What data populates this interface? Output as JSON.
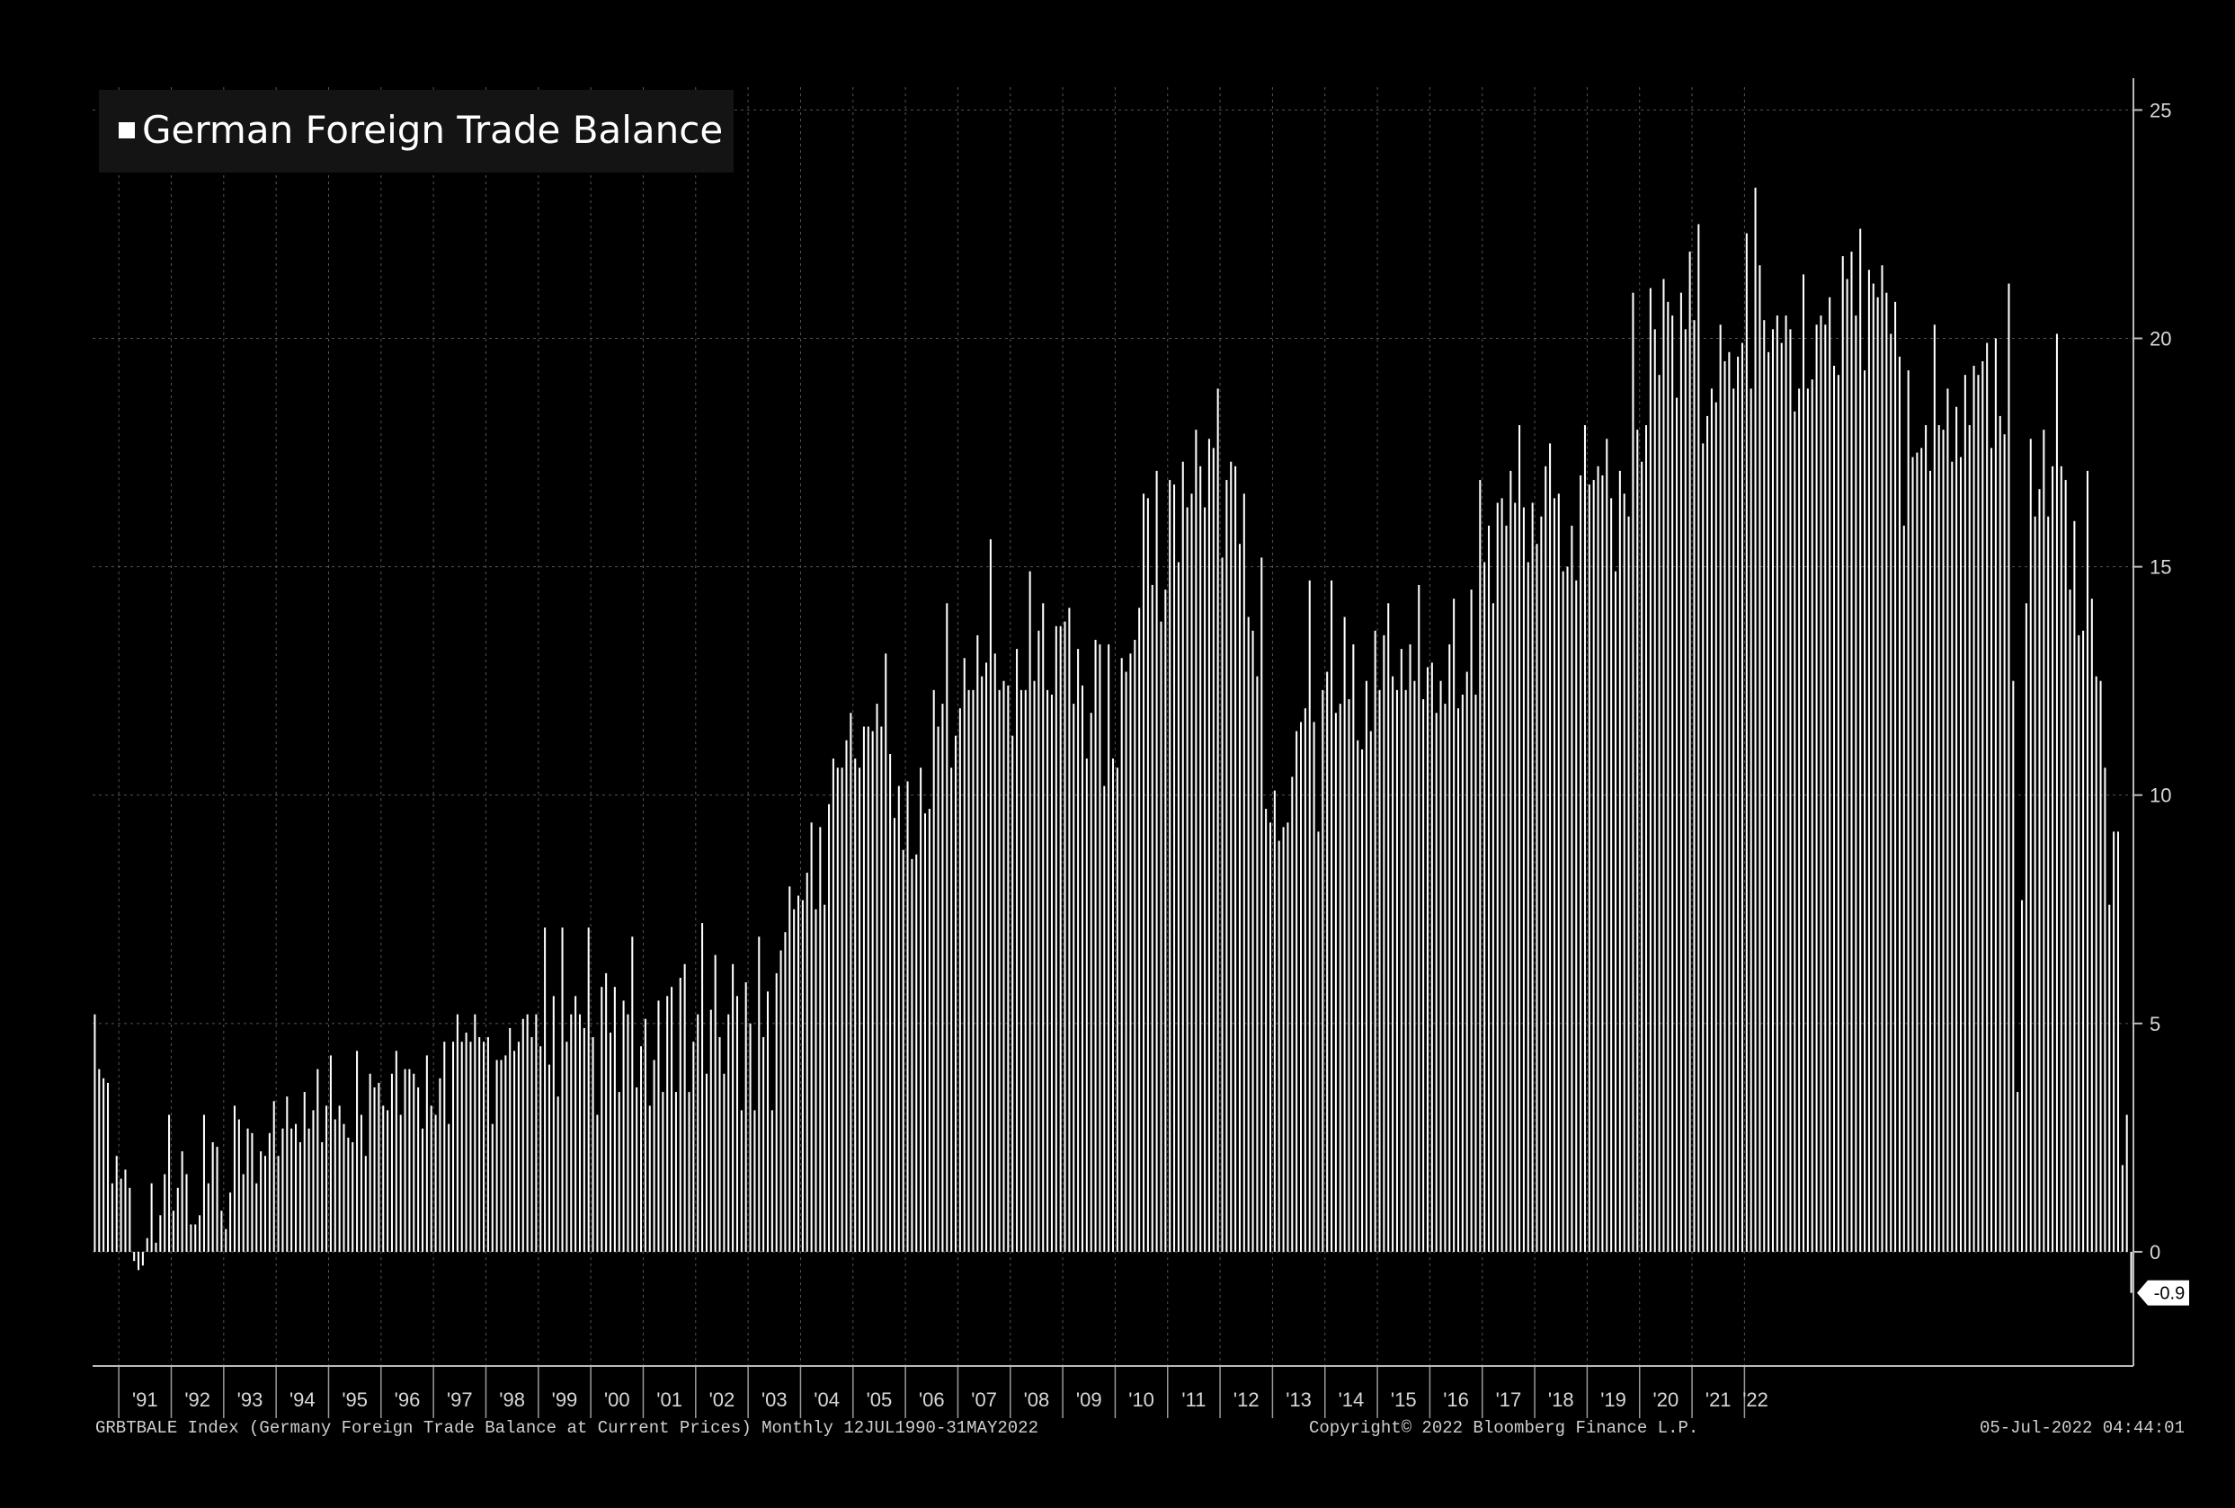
{
  "chart_data": {
    "type": "bar",
    "title": "",
    "legend": {
      "position": "top-left",
      "entries": [
        "German Foreign Trade Balance"
      ]
    },
    "colors": {
      "bars": "#ffffff",
      "background": "#000000",
      "grid": "#555555"
    },
    "grid": true,
    "x_range": [
      "1990-07",
      "2022-05"
    ],
    "ylim": [
      -2.5,
      25.5
    ],
    "y_ticks": [
      0,
      5,
      10,
      15,
      20,
      25
    ],
    "x_tick_labels": [
      "'91",
      "'92",
      "'93",
      "'94",
      "'95",
      "'96",
      "'97",
      "'98",
      "'99",
      "'00",
      "'01",
      "'02",
      "'03",
      "'04",
      "'05",
      "'06",
      "'07",
      "'08",
      "'09",
      "'10",
      "'11",
      "'12",
      "'13",
      "'14",
      "'15",
      "'16",
      "'17",
      "'18",
      "'19",
      "'20",
      "'21",
      "'22"
    ],
    "last_value_label": "-0.9",
    "series": [
      {
        "name": "German Foreign Trade Balance",
        "start_month": "1990-07",
        "frequency": "monthly",
        "values": [
          5.2,
          4.0,
          3.8,
          3.7,
          1.5,
          2.1,
          1.6,
          1.8,
          1.4,
          -0.2,
          -0.4,
          -0.3,
          0.3,
          1.5,
          0.2,
          0.8,
          1.7,
          3.0,
          0.9,
          1.4,
          2.2,
          1.7,
          0.6,
          0.6,
          0.8,
          3.0,
          1.5,
          2.4,
          2.3,
          0.9,
          0.5,
          1.3,
          3.2,
          2.9,
          1.7,
          2.7,
          2.6,
          1.5,
          2.2,
          2.1,
          2.6,
          3.3,
          2.1,
          2.7,
          3.4,
          2.7,
          2.8,
          2.4,
          3.5,
          2.7,
          3.1,
          4.0,
          2.4,
          3.2,
          4.3,
          2.9,
          3.2,
          2.8,
          2.5,
          2.4,
          4.4,
          3.0,
          2.1,
          3.9,
          3.6,
          3.7,
          3.2,
          3.1,
          3.9,
          4.4,
          3.0,
          4.0,
          4.0,
          3.9,
          3.6,
          2.7,
          4.3,
          3.2,
          3.0,
          3.8,
          4.6,
          2.8,
          4.6,
          5.2,
          4.6,
          4.8,
          4.6,
          5.2,
          4.7,
          4.6,
          4.7,
          2.8,
          4.2,
          4.2,
          4.3,
          4.9,
          4.4,
          4.6,
          5.1,
          5.2,
          4.7,
          5.2,
          4.5,
          7.1,
          4.1,
          5.6,
          3.4,
          7.1,
          4.6,
          5.2,
          5.6,
          5.2,
          4.9,
          7.1,
          4.7,
          3.0,
          5.8,
          6.1,
          4.8,
          5.8,
          3.5,
          5.5,
          5.2,
          6.9,
          3.6,
          4.5,
          5.1,
          3.2,
          4.2,
          5.5,
          3.5,
          5.6,
          5.8,
          3.5,
          6.0,
          6.3,
          3.5,
          4.6,
          5.2,
          7.2,
          3.9,
          5.3,
          6.5,
          4.7,
          3.9,
          5.2,
          6.3,
          5.6,
          3.1,
          5.9,
          5.0,
          3.1,
          6.9,
          4.7,
          5.7,
          3.1,
          6.1,
          6.6,
          7.0,
          8.0,
          7.5,
          7.8,
          7.7,
          8.3,
          9.4,
          7.5,
          9.3,
          7.6,
          9.8,
          10.8,
          10.6,
          10.6,
          11.2,
          11.8,
          10.8,
          10.6,
          11.5,
          11.5,
          11.4,
          12.0,
          11.5,
          13.1,
          10.9,
          9.5,
          10.2,
          8.8,
          10.3,
          8.6,
          8.7,
          10.6,
          9.6,
          9.7,
          12.3,
          11.5,
          12.0,
          14.2,
          10.6,
          11.3,
          11.9,
          13.0,
          12.3,
          12.3,
          13.5,
          12.6,
          12.9,
          15.6,
          13.1,
          12.3,
          12.5,
          12.4,
          11.3,
          13.2,
          12.3,
          12.3,
          14.9,
          12.5,
          13.6,
          14.2,
          12.3,
          12.2,
          13.7,
          13.7,
          13.8,
          14.1,
          12.0,
          13.2,
          12.4,
          10.8,
          11.8,
          13.4,
          13.3,
          10.2,
          13.3,
          10.8,
          10.6,
          13.0,
          12.7,
          13.1,
          13.4,
          14.1,
          16.6,
          16.5,
          14.6,
          17.1,
          13.8,
          14.5,
          16.9,
          16.8,
          15.1,
          17.3,
          16.3,
          16.6,
          18.0,
          17.2,
          16.3,
          17.8,
          17.6,
          18.9,
          15.2,
          16.9,
          17.3,
          17.2,
          15.5,
          16.6,
          13.9,
          13.6,
          12.6,
          15.2,
          9.7,
          9.4,
          10.1,
          9.0,
          9.3,
          9.4,
          10.4,
          11.4,
          11.6,
          11.9,
          14.7,
          11.6,
          9.2,
          12.3,
          12.7,
          14.7,
          11.8,
          12.0,
          13.9,
          12.1,
          13.3,
          11.2,
          11.0,
          12.5,
          11.4,
          13.6,
          12.3,
          13.5,
          14.2,
          12.6,
          12.3,
          13.2,
          12.3,
          13.3,
          12.5,
          14.6,
          12.1,
          12.8,
          12.9,
          11.8,
          12.5,
          12.0,
          13.3,
          14.3,
          11.9,
          12.2,
          12.7,
          14.5,
          12.2,
          16.9,
          15.1,
          15.9,
          14.2,
          16.4,
          16.5,
          15.9,
          17.1,
          16.4,
          18.1,
          16.3,
          15.1,
          16.4,
          15.5,
          16.1,
          17.2,
          17.7,
          16.5,
          16.6,
          14.9,
          15.0,
          15.9,
          14.7,
          17.0,
          18.1,
          16.8,
          16.9,
          17.2,
          17.0,
          17.8,
          16.5,
          14.9,
          17.1,
          16.6,
          16.1,
          21.0,
          18.0,
          17.3,
          18.1,
          21.1,
          20.2,
          19.2,
          21.3,
          20.8,
          20.5,
          18.7,
          21.0,
          20.2,
          21.9,
          20.4,
          22.5,
          17.7,
          18.3,
          18.9,
          18.6,
          20.3,
          19.5,
          19.7,
          18.9,
          19.6,
          19.9,
          22.3,
          18.9,
          23.3,
          21.6,
          20.4,
          19.7,
          20.2,
          20.5,
          19.9,
          20.5,
          20.2,
          18.4,
          18.9,
          21.4,
          18.9,
          19.1,
          20.3,
          20.5,
          20.3,
          20.9,
          19.4,
          19.2,
          21.8,
          21.3,
          21.9,
          20.5,
          22.4,
          19.3,
          21.5,
          21.2,
          20.9,
          21.6,
          21.0,
          20.1,
          20.8,
          19.6,
          15.9,
          19.3,
          17.4,
          17.5,
          17.6,
          18.1,
          17.1,
          20.3,
          18.1,
          18.0,
          18.9,
          17.3,
          18.5,
          17.4,
          19.2,
          18.1,
          19.4,
          19.2,
          19.5,
          19.9,
          17.6,
          20.0,
          18.3,
          17.9,
          21.2,
          12.5,
          3.5,
          7.7,
          14.2,
          17.8,
          16.1,
          16.7,
          18.0,
          16.1,
          17.2,
          20.1,
          17.2,
          16.9,
          14.5,
          16.0,
          13.5,
          13.6,
          17.1,
          14.3,
          12.6,
          12.5,
          10.6,
          7.6,
          9.2,
          9.2,
          1.9,
          3.0,
          -0.9
        ]
      }
    ]
  },
  "footer": {
    "left": "GRBTBALE Index (Germany Foreign Trade Balance at Current Prices)  Monthly 12JUL1990-31MAY2022",
    "center": "Copyright© 2022 Bloomberg Finance L.P.",
    "right": "05-Jul-2022 04:44:01"
  }
}
